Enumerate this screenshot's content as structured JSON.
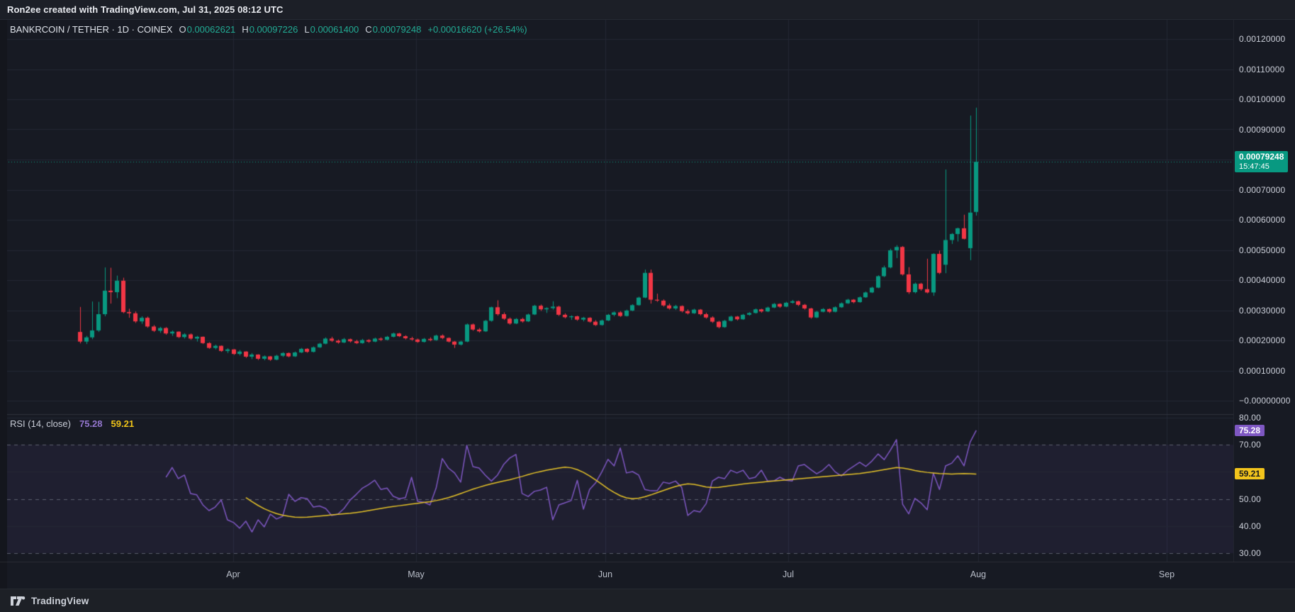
{
  "topbar": {
    "credit": "Ron2ee created with TradingView.com, Jul 31, 2025 08:12 UTC"
  },
  "legend": {
    "symbol": "BANKRCOIN / TETHER",
    "interval_exchange": "· 1D · COINEX",
    "ohlc": [
      {
        "label": "O",
        "value": "0.00062621"
      },
      {
        "label": "H",
        "value": "0.00097226"
      },
      {
        "label": "L",
        "value": "0.00061400"
      },
      {
        "label": "C",
        "value": "0.00079248"
      }
    ],
    "change": "+0.00016620 (+26.54%)"
  },
  "rsi_legend": {
    "title": "RSI (14, close)",
    "rsi_value": "75.28",
    "ma_value": "59.21"
  },
  "price_axis_badge": {
    "price": "0.00079248",
    "time": "15:47:45"
  },
  "rsi_axis_badges": {
    "rsi": "75.28",
    "ma": "59.21"
  },
  "footer": {
    "brand": "TradingView"
  },
  "colors": {
    "up": "#089981",
    "down": "#f23645",
    "rsi_line": "#7e57c2",
    "rsi_ma_line": "#e5c228",
    "price_badge_bg": "#089981",
    "rsi_badge_bg": "#7e57c2",
    "ma_badge_bg": "#f2c41c",
    "pane_bg": "#171a23",
    "grid": "#232734",
    "band_fill": "rgba(126,87,194,0.09)",
    "dashed_level": "rgba(145,151,166,0.55)",
    "last_price_line": "#0a9a82"
  },
  "chart_data": {
    "type": "candlestick",
    "title": "BANKRCOIN / TETHER · 1D · COINEX",
    "legend_note": "values are price * 1e-8 (USDT)",
    "price_unit": 1e-08,
    "last_price": 0.00079248,
    "grid": true,
    "y_axis": {
      "range": [
        0,
        0.0012
      ],
      "tick_step": 0.0001,
      "ticks": [
        {
          "text": "0.00120000",
          "value": 0.0012
        },
        {
          "text": "0.00110000",
          "value": 0.0011
        },
        {
          "text": "0.00100000",
          "value": 0.001
        },
        {
          "text": "0.00090000",
          "value": 0.0009
        },
        {
          "text": "0.00070000",
          "value": 0.0007
        },
        {
          "text": "0.00060000",
          "value": 0.0006
        },
        {
          "text": "0.00050000",
          "value": 0.0005
        },
        {
          "text": "0.00040000",
          "value": 0.0004
        },
        {
          "text": "0.00030000",
          "value": 0.0003
        },
        {
          "text": "0.00020000",
          "value": 0.0002
        },
        {
          "text": "0.00010000",
          "value": 0.0001
        },
        {
          "text": "−0.00000000",
          "value": 0
        }
      ]
    },
    "x_axis": {
      "months": [
        "Apr",
        "May",
        "Jun",
        "Jul",
        "Aug",
        "Sep"
      ]
    },
    "candles_format": [
      "open",
      "high",
      "low",
      "close"
    ],
    "candles": [
      [
        22800,
        31100,
        19000,
        19600
      ],
      [
        19600,
        21500,
        18800,
        21000
      ],
      [
        21000,
        32900,
        20400,
        23300
      ],
      [
        23300,
        32800,
        22800,
        28700
      ],
      [
        28700,
        44200,
        28000,
        36500
      ],
      [
        36500,
        44100,
        32200,
        36000
      ],
      [
        36000,
        41500,
        34000,
        39800
      ],
      [
        39800,
        40800,
        29000,
        29400
      ],
      [
        29400,
        30500,
        27500,
        29000
      ],
      [
        29000,
        29600,
        25800,
        26300
      ],
      [
        26300,
        28000,
        25500,
        27500
      ],
      [
        27500,
        27900,
        24200,
        24600
      ],
      [
        24600,
        25100,
        22800,
        23200
      ],
      [
        23200,
        24500,
        22500,
        24100
      ],
      [
        24100,
        24400,
        21900,
        22300
      ],
      [
        22300,
        23300,
        21500,
        22900
      ],
      [
        22900,
        23000,
        20800,
        21100
      ],
      [
        21100,
        22400,
        20600,
        22000
      ],
      [
        22000,
        22300,
        20200,
        20600
      ],
      [
        20600,
        21500,
        19600,
        21200
      ],
      [
        21200,
        21300,
        18800,
        19100
      ],
      [
        19100,
        19400,
        17200,
        17500
      ],
      [
        17500,
        18600,
        17000,
        18200
      ],
      [
        18200,
        18300,
        16200,
        16500
      ],
      [
        16500,
        17400,
        15800,
        17000
      ],
      [
        17000,
        17100,
        15200,
        15500
      ],
      [
        15500,
        16800,
        15000,
        16300
      ],
      [
        16300,
        16400,
        14200,
        14600
      ],
      [
        14600,
        15800,
        13800,
        15300
      ],
      [
        15300,
        15400,
        13500,
        13900
      ],
      [
        13900,
        15000,
        13400,
        14700
      ],
      [
        14700,
        14800,
        13200,
        13600
      ],
      [
        13600,
        15200,
        13400,
        14900
      ],
      [
        14900,
        16100,
        14500,
        15800
      ],
      [
        15800,
        16000,
        14400,
        14700
      ],
      [
        14700,
        16300,
        14500,
        16000
      ],
      [
        16000,
        17500,
        15800,
        17200
      ],
      [
        17200,
        17400,
        15900,
        16200
      ],
      [
        16200,
        18000,
        16000,
        17700
      ],
      [
        17700,
        19200,
        17500,
        18900
      ],
      [
        18900,
        21000,
        18700,
        20600
      ],
      [
        20600,
        21200,
        19500,
        19900
      ],
      [
        19900,
        20300,
        18900,
        19300
      ],
      [
        19300,
        20800,
        19100,
        20400
      ],
      [
        20400,
        20600,
        19300,
        19700
      ],
      [
        19700,
        20200,
        18800,
        19100
      ],
      [
        19100,
        20500,
        18900,
        20100
      ],
      [
        20100,
        20400,
        19200,
        19600
      ],
      [
        19600,
        20900,
        19400,
        20600
      ],
      [
        20600,
        21000,
        19800,
        20200
      ],
      [
        20200,
        21500,
        20000,
        21200
      ],
      [
        21200,
        22600,
        21000,
        22300
      ],
      [
        22300,
        22500,
        21100,
        21400
      ],
      [
        21400,
        21700,
        20300,
        20700
      ],
      [
        20700,
        21200,
        19900,
        20300
      ],
      [
        20300,
        20600,
        19200,
        19500
      ],
      [
        19500,
        20800,
        19300,
        20500
      ],
      [
        20500,
        21000,
        19700,
        20100
      ],
      [
        20100,
        21900,
        19900,
        21600
      ],
      [
        21600,
        22000,
        20400,
        20800
      ],
      [
        20800,
        21000,
        19300,
        19600
      ],
      [
        19600,
        19800,
        17500,
        18600
      ],
      [
        18600,
        19900,
        18300,
        19600
      ],
      [
        19600,
        25600,
        19400,
        25300
      ],
      [
        25300,
        25600,
        23200,
        23600
      ],
      [
        23600,
        24100,
        22600,
        23000
      ],
      [
        23000,
        26800,
        22800,
        26500
      ],
      [
        26500,
        31200,
        26200,
        31000
      ],
      [
        31000,
        33300,
        28200,
        28700
      ],
      [
        28700,
        29300,
        26800,
        27200
      ],
      [
        27200,
        27600,
        25200,
        25600
      ],
      [
        25600,
        27400,
        25400,
        27100
      ],
      [
        27100,
        27500,
        25900,
        26300
      ],
      [
        26300,
        28900,
        26100,
        28600
      ],
      [
        28600,
        31800,
        28400,
        31500
      ],
      [
        31500,
        31900,
        29800,
        30300
      ],
      [
        30300,
        31000,
        29100,
        30700
      ],
      [
        30700,
        33000,
        30200,
        31200
      ],
      [
        31200,
        31500,
        28100,
        28500
      ],
      [
        28500,
        29000,
        27300,
        27700
      ],
      [
        27700,
        28300,
        26800,
        28000
      ],
      [
        28000,
        28200,
        26500,
        26900
      ],
      [
        26900,
        27800,
        26300,
        27500
      ],
      [
        27500,
        27700,
        25900,
        26200
      ],
      [
        26200,
        26700,
        24800,
        25100
      ],
      [
        25100,
        26900,
        24900,
        26600
      ],
      [
        26600,
        28800,
        26400,
        28500
      ],
      [
        28500,
        29600,
        28000,
        29300
      ],
      [
        29300,
        29700,
        27800,
        28100
      ],
      [
        28100,
        30200,
        27900,
        29900
      ],
      [
        29900,
        32000,
        29700,
        31700
      ],
      [
        31700,
        34500,
        31500,
        34200
      ],
      [
        34200,
        43500,
        34000,
        42400
      ],
      [
        42400,
        43500,
        32200,
        33500
      ],
      [
        33500,
        35500,
        32800,
        33200
      ],
      [
        33200,
        33600,
        31200,
        31600
      ],
      [
        31600,
        32200,
        30200,
        30600
      ],
      [
        30600,
        31800,
        30100,
        31400
      ],
      [
        31400,
        31600,
        29300,
        29700
      ],
      [
        29700,
        30300,
        28600,
        29000
      ],
      [
        29000,
        30500,
        28800,
        30200
      ],
      [
        30200,
        30400,
        28300,
        28700
      ],
      [
        28700,
        29200,
        27200,
        27600
      ],
      [
        27600,
        28000,
        25800,
        26200
      ],
      [
        26200,
        26500,
        24000,
        24400
      ],
      [
        24400,
        26800,
        24200,
        26500
      ],
      [
        26500,
        28200,
        26300,
        27900
      ],
      [
        27900,
        28100,
        26600,
        27000
      ],
      [
        27000,
        28800,
        26800,
        28500
      ],
      [
        28500,
        29400,
        28200,
        29100
      ],
      [
        29100,
        30600,
        28900,
        30300
      ],
      [
        30300,
        30500,
        29200,
        29600
      ],
      [
        29600,
        31200,
        29400,
        30900
      ],
      [
        30900,
        32400,
        30700,
        32100
      ],
      [
        32100,
        32300,
        30800,
        31200
      ],
      [
        31200,
        32800,
        31000,
        32500
      ],
      [
        32500,
        33400,
        32200,
        33000
      ],
      [
        33000,
        33200,
        31400,
        31800
      ],
      [
        31800,
        32100,
        30200,
        30600
      ],
      [
        30600,
        30800,
        27200,
        27600
      ],
      [
        27600,
        29800,
        27400,
        29500
      ],
      [
        29500,
        30700,
        29300,
        30400
      ],
      [
        30400,
        30600,
        29100,
        29500
      ],
      [
        29500,
        31300,
        29300,
        31000
      ],
      [
        31000,
        32600,
        30800,
        32300
      ],
      [
        32300,
        33800,
        32100,
        33500
      ],
      [
        33500,
        33700,
        32300,
        32700
      ],
      [
        32700,
        34600,
        32500,
        34300
      ],
      [
        34300,
        36200,
        34100,
        35900
      ],
      [
        35900,
        37800,
        35700,
        37500
      ],
      [
        37500,
        41600,
        37300,
        41300
      ],
      [
        41300,
        44800,
        41000,
        44200
      ],
      [
        44200,
        50400,
        43900,
        49900
      ],
      [
        49900,
        51600,
        47300,
        51000
      ],
      [
        51000,
        51300,
        41500,
        41900
      ],
      [
        41900,
        44300,
        35400,
        36000
      ],
      [
        36000,
        39200,
        35600,
        38800
      ],
      [
        38800,
        39100,
        36500,
        37000
      ],
      [
        37000,
        47100,
        35600,
        35900
      ],
      [
        35900,
        48900,
        34800,
        48700
      ],
      [
        48700,
        49800,
        42000,
        42400
      ],
      [
        45100,
        76700,
        42300,
        53300
      ],
      [
        53300,
        55600,
        52000,
        55300
      ],
      [
        55300,
        57400,
        52800,
        57200
      ],
      [
        57200,
        61700,
        53500,
        53700
      ],
      [
        50600,
        94600,
        46600,
        62400
      ],
      [
        62621,
        97226,
        61400,
        79248
      ]
    ],
    "indicator": {
      "name": "RSI",
      "length": 14,
      "source": "close",
      "visible_range": [
        26,
        82
      ],
      "levels_dashed": [
        70,
        50,
        30
      ],
      "levels_faint": [
        80,
        60,
        40
      ],
      "rsi_last": 75.28,
      "ma_last": 59.21,
      "rsi_start_index": 14,
      "rsi": [
        58.0,
        61.6,
        57.5,
        58.8,
        52.0,
        51.5,
        47.8,
        45.7,
        47.0,
        49.6,
        42.3,
        41.3,
        39.2,
        41.8,
        37.8,
        42.3,
        39.7,
        44.4,
        42.6,
        43.6,
        51.7,
        49.1,
        50.5,
        50.1,
        47.0,
        47.4,
        46.5,
        43.9,
        44.4,
        46.5,
        49.6,
        51.7,
        54.0,
        55.3,
        56.9,
        53.5,
        54.0,
        51.0,
        50.1,
        50.5,
        58.0,
        49.1,
        48.8,
        47.8,
        54.0,
        64.9,
        61.4,
        59.6,
        56.2,
        69.8,
        61.9,
        61.4,
        58.8,
        56.6,
        58.8,
        62.7,
        65.1,
        66.4,
        52.0,
        50.9,
        52.8,
        53.3,
        54.3,
        42.3,
        47.8,
        48.6,
        49.4,
        56.9,
        46.2,
        53.5,
        56.0,
        60.0,
        64.6,
        62.2,
        68.8,
        59.6,
        60.1,
        58.8,
        53.5,
        53.0,
        53.0,
        56.2,
        55.7,
        56.6,
        54.3,
        43.9,
        45.7,
        45.2,
        48.3,
        56.6,
        58.0,
        57.5,
        60.6,
        59.6,
        60.6,
        57.5,
        58.0,
        60.6,
        56.6,
        56.6,
        58.0,
        56.9,
        56.6,
        62.2,
        62.7,
        60.9,
        59.3,
        60.6,
        62.7,
        60.0,
        58.5,
        60.5,
        62.0,
        63.5,
        62.0,
        64.0,
        66.6,
        64.5,
        68.0,
        71.9,
        48.0,
        44.5,
        50.2,
        48.5,
        46.0,
        59.5,
        53.5,
        62.2,
        63.2,
        65.9,
        62.2,
        71.0,
        75.28
      ],
      "ma_start_index": 27,
      "ma": [
        50.5,
        49.0,
        47.6,
        46.4,
        45.4,
        44.6,
        44.0,
        43.6,
        43.3,
        43.2,
        43.3,
        43.5,
        43.7,
        43.9,
        44.1,
        44.3,
        44.5,
        44.7,
        45.0,
        45.3,
        45.7,
        46.1,
        46.5,
        46.9,
        47.2,
        47.5,
        47.8,
        48.1,
        48.4,
        48.7,
        49.0,
        49.4,
        49.9,
        50.5,
        51.2,
        52.0,
        52.8,
        53.6,
        54.3,
        55.0,
        55.6,
        56.1,
        56.6,
        57.1,
        57.7,
        58.3,
        59.0,
        59.6,
        60.1,
        60.6,
        61.0,
        61.4,
        61.7,
        61.5,
        60.8,
        59.8,
        58.5,
        57.0,
        55.4,
        53.8,
        52.4,
        51.2,
        50.4,
        50.1,
        50.3,
        50.8,
        51.5,
        52.3,
        53.1,
        53.9,
        54.6,
        55.2,
        55.6,
        55.4,
        54.9,
        54.4,
        54.2,
        54.3,
        54.6,
        54.9,
        55.2,
        55.5,
        55.8,
        56.0,
        56.2,
        56.4,
        56.6,
        56.8,
        57.0,
        57.2,
        57.4,
        57.6,
        57.8,
        58.0,
        58.2,
        58.4,
        58.6,
        58.8,
        59.0,
        59.2,
        59.4,
        59.7,
        60.0,
        60.4,
        60.8,
        61.2,
        61.6,
        61.4,
        61.0,
        60.5,
        60.1,
        59.8,
        59.6,
        59.4,
        59.3,
        59.2,
        59.3,
        59.4,
        59.3,
        59.21
      ]
    }
  }
}
